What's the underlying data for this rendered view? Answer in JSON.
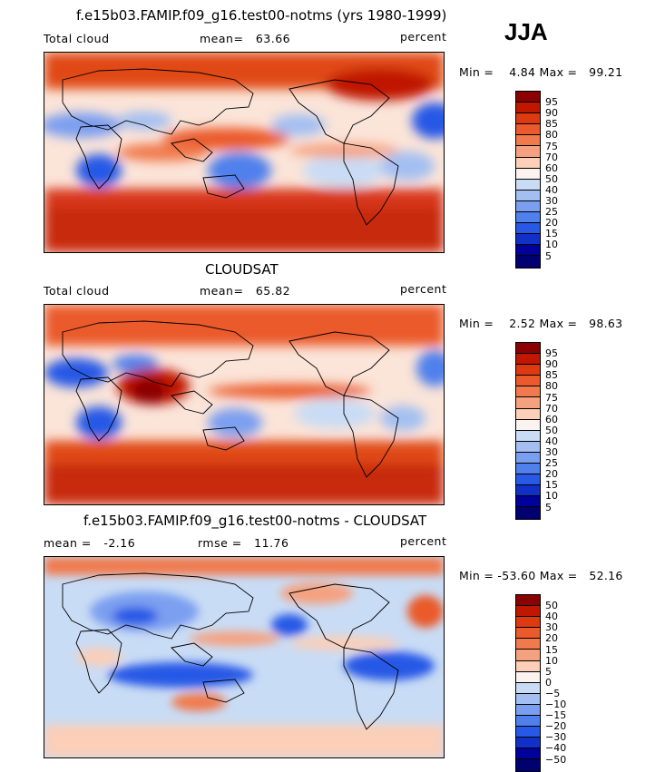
{
  "season": "JJA",
  "panels": [
    {
      "title": "f.e15b03.FAMIP.f09_g16.test00-notms (yrs 1980-1999)",
      "left_label": "Total cloud",
      "center_label": "mean=   63.66",
      "right_label": "percent",
      "minmax": "Min =    4.84 Max =   99.21",
      "levels": [
        "95",
        "90",
        "85",
        "80",
        "75",
        "70",
        "60",
        "50",
        "40",
        "30",
        "25",
        "20",
        "15",
        "10",
        "5"
      ],
      "colors": [
        "#8b0000",
        "#c01800",
        "#de3a12",
        "#ea5a2c",
        "#f07a4e",
        "#f5a17f",
        "#fbcfb8",
        "#fbf3ef",
        "#c9dcf5",
        "#a3bff2",
        "#7b9ff0",
        "#5080ec",
        "#2858e6",
        "#1030c8",
        "#00009a",
        "#000070"
      ]
    },
    {
      "title": "CLOUDSAT",
      "left_label": "Total cloud",
      "center_label": "mean=   65.82",
      "right_label": "percent",
      "minmax": "Min =    2.52 Max =   98.63",
      "levels": [
        "95",
        "90",
        "85",
        "80",
        "75",
        "70",
        "60",
        "50",
        "40",
        "30",
        "25",
        "20",
        "15",
        "10",
        "5"
      ],
      "colors": [
        "#8b0000",
        "#c01800",
        "#de3a12",
        "#ea5a2c",
        "#f07a4e",
        "#f5a17f",
        "#fbcfb8",
        "#fbf3ef",
        "#c9dcf5",
        "#a3bff2",
        "#7b9ff0",
        "#5080ec",
        "#2858e6",
        "#1030c8",
        "#00009a",
        "#000070"
      ]
    },
    {
      "title": "f.e15b03.FAMIP.f09_g16.test00-notms - CLOUDSAT",
      "left_label": "mean =   -2.16",
      "center_label": "rmse =   11.76",
      "right_label": "percent",
      "minmax": "Min = -53.60 Max =   52.16",
      "levels": [
        "50",
        "40",
        "30",
        "20",
        "15",
        "10",
        "5",
        "0",
        "-5",
        "-10",
        "-15",
        "-20",
        "-30",
        "-40",
        "-50"
      ],
      "colors": [
        "#8b0000",
        "#c01800",
        "#de3a12",
        "#ea5a2c",
        "#f07a4e",
        "#f5a17f",
        "#fbcfb8",
        "#fbf3ef",
        "#c9dcf5",
        "#a3bff2",
        "#7b9ff0",
        "#5080ec",
        "#2858e6",
        "#1030c8",
        "#00009a",
        "#000070"
      ]
    }
  ]
}
